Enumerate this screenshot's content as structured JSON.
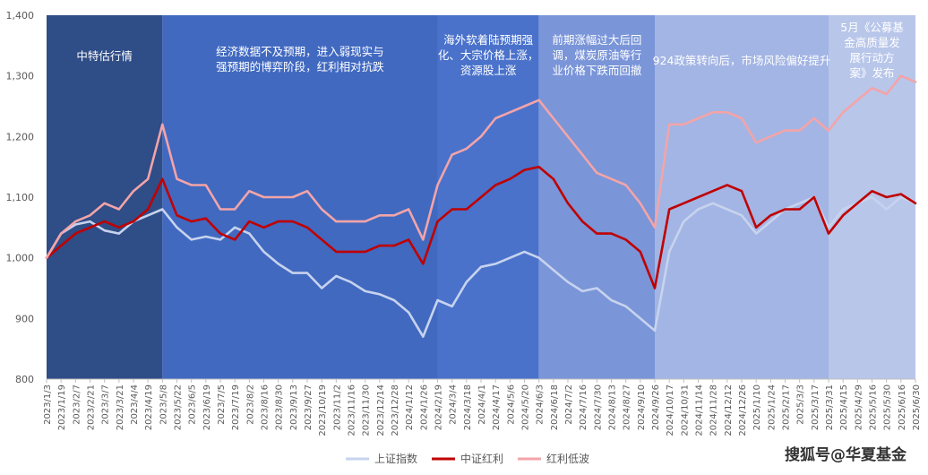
{
  "chart_data": {
    "type": "line",
    "yticks": [
      "1,400",
      "1,300",
      "1,200",
      "1,100",
      "1,000",
      "900",
      "800"
    ],
    "ylim": [
      800,
      1400
    ],
    "xticks": [
      "2023/1/3",
      "2023/1/19",
      "2023/2/7",
      "2023/2/21",
      "2023/3/7",
      "2023/3/21",
      "2023/4/4",
      "2023/4/19",
      "2023/5/8",
      "2023/5/22",
      "2023/6/5",
      "2023/6/19",
      "2023/7/5",
      "2023/7/19",
      "2023/8/2",
      "2023/8/16",
      "2023/8/30",
      "2023/9/13",
      "2023/9/27",
      "2023/10/19",
      "2023/11/2",
      "2023/11/16",
      "2023/11/30",
      "2023/12/14",
      "2023/12/28",
      "2024/1/12",
      "2024/1/26",
      "2024/2/19",
      "2024/3/4",
      "2024/3/18",
      "2024/4/1",
      "2024/4/17",
      "2024/5/6",
      "2024/5/20",
      "2024/6/3",
      "2024/6/18",
      "2024/7/2",
      "2024/7/16",
      "2024/7/30",
      "2024/8/13",
      "2024/8/27",
      "2024/9/10",
      "2024/9/26",
      "2024/10/17",
      "2024/10/31",
      "2024/11/14",
      "2024/11/28",
      "2024/12/12",
      "2024/12/26",
      "2025/1/10",
      "2025/1/24",
      "2025/2/17",
      "2025/3/3",
      "2025/3/17",
      "2025/3/31",
      "2025/4/15",
      "2025/4/29",
      "2025/5/16",
      "2025/5/30",
      "2025/6/16",
      "2025/6/30"
    ],
    "periods": [
      {
        "lines": [
          "中特估行情"
        ],
        "color": "#2f4d87"
      },
      {
        "lines": [
          "经济数据不及预期，进入弱现实与",
          "强预期的博弈阶段，红利相对抗跌"
        ],
        "color": "#4169c0"
      },
      {
        "lines": [
          "海外软着陆预期强",
          "化、大宗价格上涨，",
          "资源股上涨"
        ],
        "color": "#4a72cb"
      },
      {
        "lines": [
          "前期涨幅过大后回",
          "调，煤炭原油等行",
          "业价格下跌而回撤"
        ],
        "color": "#7a95d8"
      },
      {
        "lines": [
          "924政策转向后，市场风险偏好提升"
        ],
        "color": "#a3b5e4"
      },
      {
        "lines": [
          "5月《公募基",
          "金高质量发",
          "展行动方",
          "案》发布"
        ],
        "color": "#b8c6ea"
      }
    ],
    "series": [
      {
        "name": "上证指数",
        "color": "#c7d3ee",
        "values": [
          1000,
          1040,
          1055,
          1060,
          1045,
          1040,
          1060,
          1070,
          1080,
          1050,
          1030,
          1035,
          1030,
          1050,
          1040,
          1010,
          990,
          975,
          975,
          950,
          970,
          960,
          945,
          940,
          930,
          910,
          870,
          930,
          920,
          960,
          985,
          990,
          1000,
          1010,
          1000,
          980,
          960,
          945,
          950,
          930,
          920,
          900,
          880,
          1010,
          1060,
          1080,
          1090,
          1080,
          1070,
          1040,
          1060,
          1080,
          1090,
          1100,
          1050,
          1080,
          1090,
          1100,
          1080,
          1100,
          1090
        ]
      },
      {
        "name": "中证红利",
        "color": "#c00000",
        "values": [
          1000,
          1020,
          1040,
          1050,
          1060,
          1050,
          1060,
          1080,
          1130,
          1070,
          1060,
          1065,
          1040,
          1030,
          1060,
          1050,
          1060,
          1060,
          1050,
          1030,
          1010,
          1010,
          1010,
          1020,
          1020,
          1030,
          990,
          1060,
          1080,
          1080,
          1100,
          1120,
          1130,
          1145,
          1150,
          1130,
          1090,
          1060,
          1040,
          1040,
          1030,
          1010,
          950,
          1080,
          1090,
          1100,
          1110,
          1120,
          1110,
          1050,
          1070,
          1080,
          1080,
          1100,
          1040,
          1070,
          1090,
          1110,
          1100,
          1105,
          1090
        ]
      },
      {
        "name": "红利低波",
        "color": "#f3a4a8",
        "values": [
          1000,
          1040,
          1060,
          1070,
          1090,
          1080,
          1110,
          1130,
          1220,
          1130,
          1120,
          1120,
          1080,
          1080,
          1110,
          1100,
          1100,
          1100,
          1110,
          1080,
          1060,
          1060,
          1060,
          1070,
          1070,
          1080,
          1030,
          1120,
          1170,
          1180,
          1200,
          1230,
          1240,
          1250,
          1260,
          1230,
          1200,
          1170,
          1140,
          1130,
          1120,
          1090,
          1050,
          1220,
          1220,
          1230,
          1240,
          1240,
          1230,
          1190,
          1200,
          1210,
          1210,
          1230,
          1210,
          1240,
          1260,
          1280,
          1270,
          1300,
          1290
        ]
      }
    ],
    "grid": false,
    "legend_position": "bottom"
  },
  "watermark": "搜狐号@华夏基金"
}
